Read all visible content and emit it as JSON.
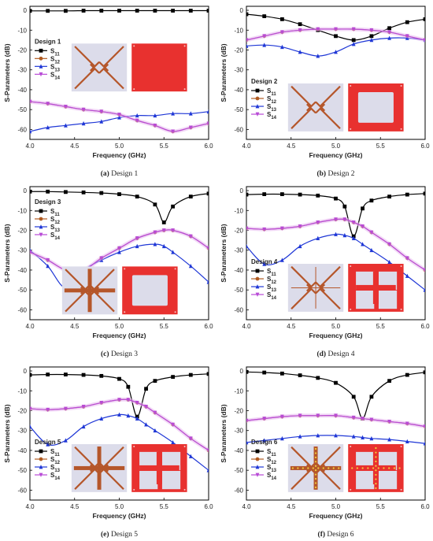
{
  "figure": {
    "x_label": "Frequency (GHz)",
    "y_label": "S-Parameters (dB)"
  },
  "series_meta": [
    {
      "name": "S11",
      "color": "#000000",
      "marker": "square"
    },
    {
      "name": "S12",
      "color": "#b05b22",
      "marker": "circle"
    },
    {
      "name": "S13",
      "color": "#1f37d6",
      "marker": "triangle"
    },
    {
      "name": "S14",
      "color": "#b84ad6",
      "marker": "triangle-down"
    }
  ],
  "chart_data": [
    {
      "type": "line",
      "design_label": "Design 1",
      "caption_letter": "(a)",
      "caption_text": "Design 1",
      "xlabel": "Frequency (GHz)",
      "ylabel": "S-Parameters (dB)",
      "xlim": [
        4.0,
        6.0
      ],
      "ylim": [
        -65,
        2
      ],
      "xticks": [
        4.0,
        4.5,
        5.0,
        5.5,
        6.0
      ],
      "yticks": [
        0,
        -10,
        -20,
        -30,
        -40,
        -50,
        -60
      ],
      "legend_position": "center-left",
      "inset": {
        "type": "unit-cell",
        "board": "full"
      },
      "x": [
        4.0,
        4.2,
        4.4,
        4.6,
        4.8,
        5.0,
        5.2,
        5.4,
        5.6,
        5.8,
        6.0
      ],
      "series": [
        {
          "name": "S11",
          "values": [
            -0.3,
            -0.3,
            -0.3,
            -0.2,
            -0.2,
            -0.2,
            -0.2,
            -0.2,
            -0.2,
            -0.2,
            -0.2
          ]
        },
        {
          "name": "S12",
          "values": [
            -46,
            -47,
            -48.5,
            -50,
            -51,
            -52.5,
            -55.5,
            -58,
            -61,
            -59,
            -57
          ]
        },
        {
          "name": "S13",
          "values": [
            -61,
            -59,
            -58,
            -57,
            -56,
            -54,
            -53,
            -53,
            -52,
            -52,
            -51
          ]
        },
        {
          "name": "S14",
          "values": [
            -46,
            -47,
            -48.5,
            -50,
            -51,
            -52.5,
            -55.5,
            -58,
            -61,
            -59,
            -57
          ]
        }
      ]
    },
    {
      "type": "line",
      "design_label": "Design 2",
      "caption_letter": "(b)",
      "caption_text": "Design 2",
      "xlabel": "Frequency (GHz)",
      "ylabel": "S-Parameters (dB)",
      "xlim": [
        4.0,
        6.0
      ],
      "ylim": [
        -65,
        2
      ],
      "xticks": [
        4.0,
        4.5,
        5.0,
        5.5,
        6.0
      ],
      "yticks": [
        0,
        -10,
        -20,
        -30,
        -40,
        -50,
        -60
      ],
      "legend_position": "bottom-left",
      "inset": {
        "type": "unit-cell",
        "board": "frame"
      },
      "x": [
        4.0,
        4.2,
        4.4,
        4.6,
        4.8,
        5.0,
        5.2,
        5.4,
        5.6,
        5.8,
        6.0
      ],
      "series": [
        {
          "name": "S11",
          "values": [
            -2,
            -3,
            -4.5,
            -7,
            -10,
            -13,
            -15,
            -13,
            -9,
            -6,
            -4.5
          ]
        },
        {
          "name": "S12",
          "values": [
            -15,
            -13,
            -11,
            -10,
            -9.5,
            -9.5,
            -9.5,
            -10,
            -11,
            -13,
            -15
          ]
        },
        {
          "name": "S13",
          "values": [
            -18,
            -17.5,
            -18.5,
            -21,
            -23,
            -21,
            -17,
            -15,
            -14,
            -14,
            -15
          ]
        },
        {
          "name": "S14",
          "values": [
            -15,
            -13,
            -11,
            -10,
            -9.5,
            -9.5,
            -9.5,
            -10,
            -11,
            -13,
            -15
          ]
        }
      ]
    },
    {
      "type": "line",
      "design_label": "Design 3",
      "caption_letter": "(c)",
      "caption_text": "Design 3",
      "xlabel": "Frequency (GHz)",
      "ylabel": "S-Parameters (dB)",
      "xlim": [
        4.0,
        6.0
      ],
      "ylim": [
        -65,
        2
      ],
      "xticks": [
        4.0,
        4.5,
        5.0,
        5.5,
        6.0
      ],
      "yticks": [
        0,
        -10,
        -20,
        -30,
        -40,
        -50,
        -60
      ],
      "legend_position": "top-left",
      "inset": {
        "type": "unit-cell-with-strips",
        "board": "frame"
      },
      "x": [
        4.0,
        4.2,
        4.4,
        4.6,
        4.8,
        5.0,
        5.2,
        5.4,
        5.5,
        5.6,
        5.8,
        6.0
      ],
      "series": [
        {
          "name": "S11",
          "values": [
            -0.5,
            -0.5,
            -0.7,
            -0.9,
            -1.2,
            -1.8,
            -3,
            -7,
            -16,
            -8,
            -3,
            -1.5
          ]
        },
        {
          "name": "S12",
          "values": [
            -31,
            -35,
            -40,
            -40,
            -34,
            -29,
            -24,
            -21,
            -20,
            -20,
            -23,
            -29
          ]
        },
        {
          "name": "S13",
          "values": [
            -30,
            -38,
            -49,
            -40,
            -35,
            -31,
            -28,
            -27,
            -28,
            -31,
            -38,
            -46
          ]
        },
        {
          "name": "S14",
          "values": [
            -31,
            -35,
            -40,
            -40,
            -34,
            -29,
            -24,
            -21,
            -20,
            -20,
            -23,
            -29
          ]
        }
      ]
    },
    {
      "type": "line",
      "design_label": "Design 4",
      "caption_letter": "(d)",
      "caption_text": "Design 4",
      "xlabel": "Frequency (GHz)",
      "ylabel": "S-Parameters (dB)",
      "xlim": [
        4.0,
        6.0
      ],
      "ylim": [
        -65,
        2
      ],
      "xticks": [
        4.0,
        4.5,
        5.0,
        5.5,
        6.0
      ],
      "yticks": [
        0,
        -10,
        -20,
        -30,
        -40,
        -50,
        -60
      ],
      "legend_position": "bottom-left",
      "inset": {
        "type": "unit-cell-cross",
        "board": "cross"
      },
      "x": [
        4.0,
        4.2,
        4.4,
        4.6,
        4.8,
        5.0,
        5.1,
        5.2,
        5.3,
        5.4,
        5.6,
        5.8,
        6.0
      ],
      "series": [
        {
          "name": "S11",
          "values": [
            -2,
            -1.8,
            -1.8,
            -2,
            -2.5,
            -4,
            -8,
            -23,
            -9,
            -5,
            -3,
            -2,
            -1.5
          ]
        },
        {
          "name": "S12",
          "values": [
            -19,
            -19.5,
            -19,
            -18,
            -16,
            -14.5,
            -14.5,
            -16,
            -18,
            -21,
            -27,
            -34,
            -40
          ]
        },
        {
          "name": "S13",
          "values": [
            -28,
            -37,
            -35,
            -28,
            -24,
            -22,
            -22.5,
            -24,
            -27,
            -30,
            -36,
            -43,
            -50
          ]
        },
        {
          "name": "S14",
          "values": [
            -19,
            -19.5,
            -19,
            -18,
            -16,
            -14.5,
            -14.5,
            -16,
            -18,
            -21,
            -27,
            -34,
            -40
          ]
        }
      ]
    },
    {
      "type": "line",
      "design_label": "Design 5",
      "caption_letter": "(e)",
      "caption_text": "Design 5",
      "xlabel": "Frequency (GHz)",
      "ylabel": "S-Parameters (dB)",
      "xlim": [
        4.0,
        6.0
      ],
      "ylim": [
        -65,
        2
      ],
      "xticks": [
        4.0,
        4.5,
        5.0,
        5.5,
        6.0
      ],
      "yticks": [
        0,
        -10,
        -20,
        -30,
        -40,
        -50,
        -60
      ],
      "legend_position": "bottom-left",
      "inset": {
        "type": "unit-cell-with-strips",
        "board": "cross"
      },
      "x": [
        4.0,
        4.2,
        4.4,
        4.6,
        4.8,
        5.0,
        5.1,
        5.2,
        5.3,
        5.4,
        5.6,
        5.8,
        6.0
      ],
      "series": [
        {
          "name": "S11",
          "values": [
            -2,
            -1.8,
            -1.8,
            -2,
            -2.5,
            -4,
            -8,
            -23,
            -9,
            -5,
            -3,
            -2,
            -1.5
          ]
        },
        {
          "name": "S12",
          "values": [
            -19,
            -19.5,
            -19,
            -18,
            -16,
            -14.5,
            -14.5,
            -16,
            -18,
            -21,
            -27,
            -34,
            -40
          ]
        },
        {
          "name": "S13",
          "values": [
            -28,
            -37,
            -35,
            -28,
            -24,
            -22,
            -22.5,
            -24,
            -27,
            -30,
            -36,
            -43,
            -50
          ]
        },
        {
          "name": "S14",
          "values": [
            -19,
            -19.5,
            -19,
            -18,
            -16,
            -14.5,
            -14.5,
            -16,
            -18,
            -21,
            -27,
            -34,
            -40
          ]
        }
      ]
    },
    {
      "type": "line",
      "design_label": "Design 6",
      "caption_letter": "(f)",
      "caption_text": "Design 6",
      "xlabel": "Frequency (GHz)",
      "ylabel": "S-Parameters (dB)",
      "xlim": [
        4.0,
        6.0
      ],
      "ylim": [
        -65,
        2
      ],
      "xticks": [
        4.0,
        4.5,
        5.0,
        5.5,
        6.0
      ],
      "yticks": [
        0,
        -10,
        -20,
        -30,
        -40,
        -50,
        -60
      ],
      "legend_position": "bottom-left",
      "inset": {
        "type": "unit-cell-with-vias",
        "board": "cross-vias"
      },
      "x": [
        4.0,
        4.2,
        4.4,
        4.6,
        4.8,
        5.0,
        5.2,
        5.3,
        5.4,
        5.6,
        5.8,
        6.0
      ],
      "series": [
        {
          "name": "S11",
          "values": [
            -0.5,
            -0.8,
            -1.3,
            -2.2,
            -3.5,
            -6,
            -13,
            -24,
            -13,
            -5,
            -2,
            -0.7
          ]
        },
        {
          "name": "S12",
          "values": [
            -25,
            -24,
            -23,
            -22.5,
            -22.5,
            -22.5,
            -23.5,
            -24,
            -24.5,
            -25.5,
            -26.5,
            -28
          ]
        },
        {
          "name": "S13",
          "values": [
            -36,
            -35,
            -34,
            -33,
            -32.5,
            -32.5,
            -33,
            -33.5,
            -34,
            -34.5,
            -35.5,
            -36.5
          ]
        },
        {
          "name": "S14",
          "values": [
            -25,
            -24,
            -23,
            -22.5,
            -22.5,
            -22.5,
            -23.5,
            -24,
            -24.5,
            -25.5,
            -26.5,
            -28
          ]
        }
      ]
    }
  ]
}
